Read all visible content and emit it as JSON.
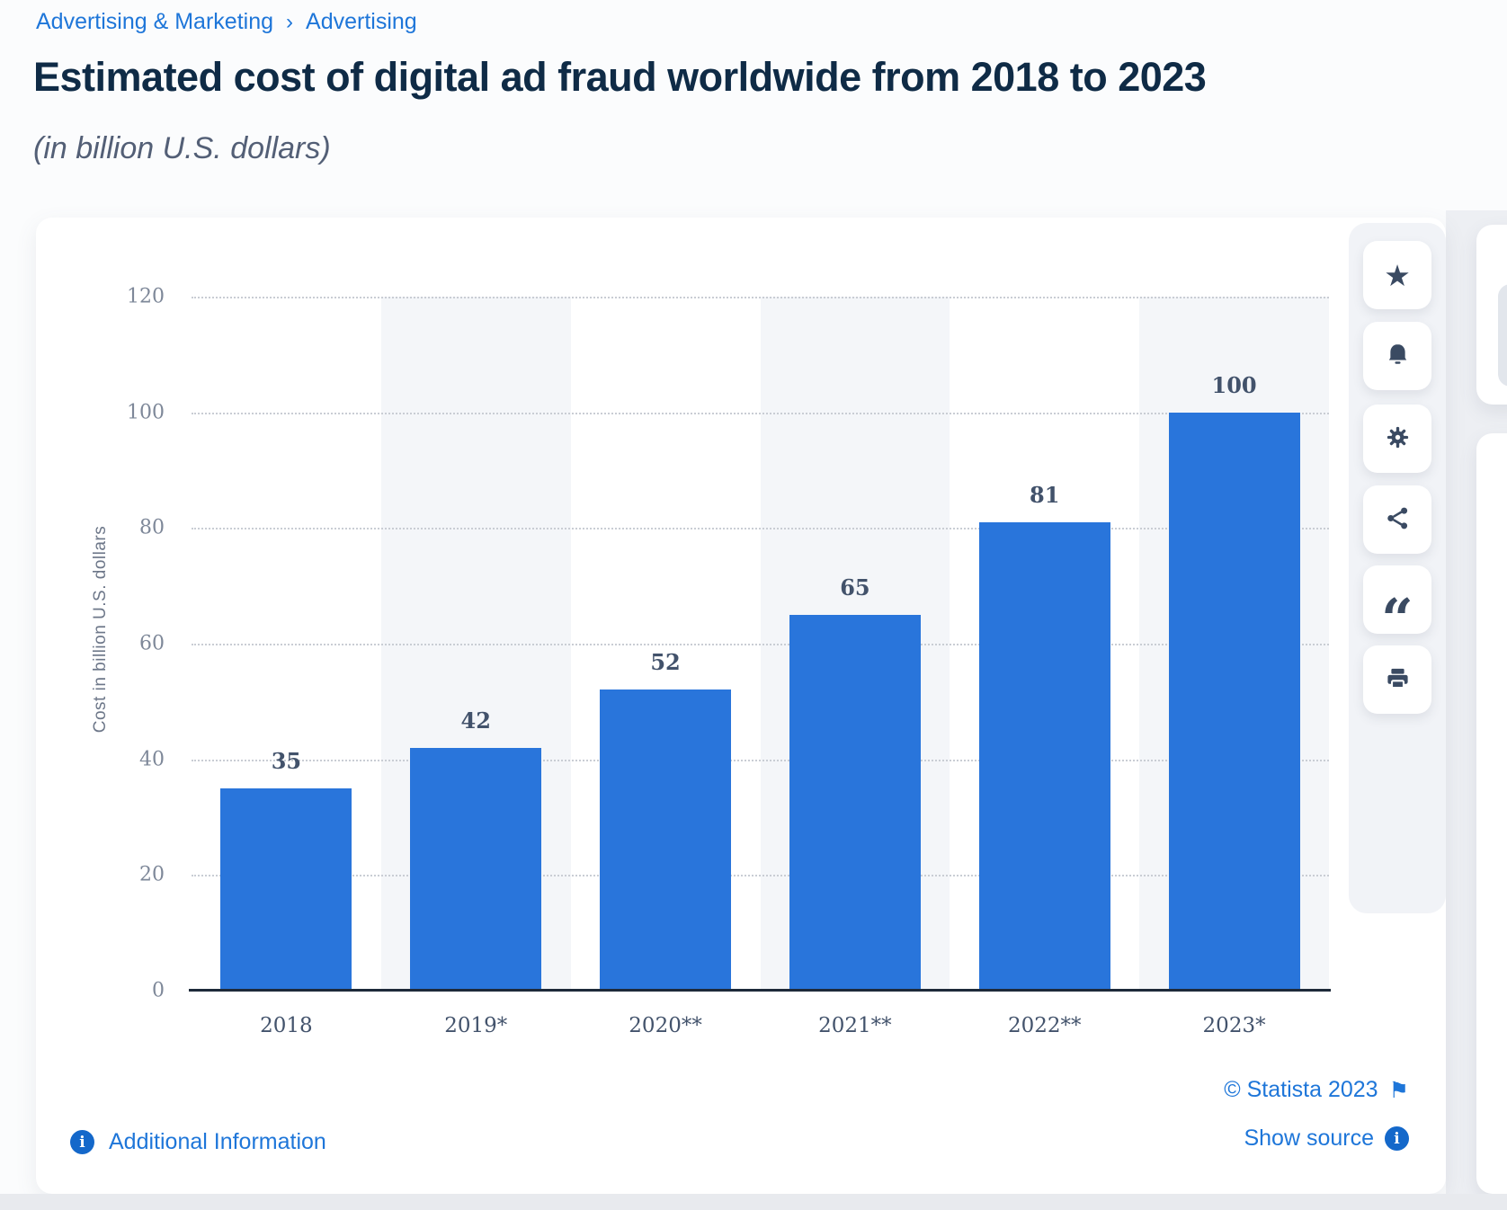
{
  "page": {
    "breadcrumb": {
      "items": [
        "Advertising & Marketing",
        "Advertising"
      ],
      "separator": "›"
    },
    "title": "Estimated cost of digital ad fraud worldwide from 2018 to 2023",
    "subtitle": "(in billion U.S. dollars)"
  },
  "chart_data": {
    "type": "bar",
    "title": "Estimated cost of digital ad fraud worldwide from 2018 to 2023",
    "subtitle": "(in billion U.S. dollars)",
    "categories": [
      "2018",
      "2019*",
      "2020**",
      "2021**",
      "2022**",
      "2023*"
    ],
    "values": [
      35,
      42,
      52,
      65,
      81,
      100
    ],
    "xlabel": "",
    "ylabel": "Cost in billion U.S. dollars",
    "ylim": [
      0,
      120
    ],
    "ytick_step": 20,
    "grid": "dotted-horizontal",
    "legend": "none",
    "bar_color": "#2975db",
    "stripe_color": "#f4f6f9",
    "striped_columns": [
      1,
      3,
      5
    ]
  },
  "toolbar": {
    "items": [
      {
        "label": "favorite",
        "icon": "star-icon",
        "glyph": "★"
      },
      {
        "label": "alerts",
        "icon": "bell-icon"
      },
      {
        "label": "settings",
        "icon": "gear-icon"
      },
      {
        "label": "share",
        "icon": "share-icon"
      },
      {
        "label": "cite",
        "icon": "quote-icon",
        "glyph": "“"
      },
      {
        "label": "print",
        "icon": "print-icon"
      }
    ]
  },
  "footer": {
    "additional_info_label": "Additional Information",
    "credit": "© Statista 2023",
    "show_source_label": "Show source",
    "info_glyph": "i",
    "flag_glyph": "⚑"
  },
  "colors": {
    "accent_link": "#1e76d9",
    "title_text": "#0f2b46",
    "bar": "#2975db",
    "icon_slate": "#3a4a62"
  }
}
